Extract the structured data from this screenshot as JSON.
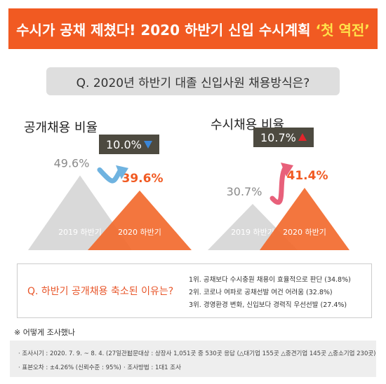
{
  "banner": {
    "title_main": "수시가 공채 제쳤다! 2020 하반기 신입 수시계획",
    "title_highlight": "‘첫 역전’"
  },
  "question": "Q. 2020년 하반기 대졸 신입사원 채용방식은?",
  "colors": {
    "accent": "#f15a22",
    "gray_triangle": "#d9d9d9",
    "orange_triangle": "#f26a2e",
    "badge_bg": "#4d4a40",
    "down_arrow": "#3a86d8",
    "up_arrow": "#e3242b",
    "curve_blue": "#6fb3e0",
    "curve_red": "#e8607a"
  },
  "chart_data": [
    {
      "type": "area",
      "title": "공개채용 비율",
      "categories": [
        "2019 하반기",
        "2020 하반기"
      ],
      "values": [
        49.6,
        39.6
      ],
      "value_labels": [
        "49.6%",
        "39.6%"
      ],
      "change_label": "10.0%",
      "change_direction": "down",
      "change_icon": "triangle-down-icon"
    },
    {
      "type": "area",
      "title": "수시채용 비율",
      "categories": [
        "2019 하반기",
        "2020 하반기"
      ],
      "values": [
        30.7,
        41.4
      ],
      "value_labels": [
        "30.7%",
        "41.4%"
      ],
      "change_label": "10.7%",
      "change_direction": "up",
      "change_icon": "triangle-up-icon"
    }
  ],
  "reasons": {
    "question": "Q. 하반기 공개채용 축소된 이유는?",
    "items": [
      "1위. 공채보다 수시충원 채용이 효율적으로 판단 (34.8%)",
      "2위. 코로나 여파로 공채선발 여건 어려움 (32.8%)",
      "3위. 경영환경 변화, 신입보다 경력직 우선선발 (27.4%)"
    ]
  },
  "method": {
    "title": "※ 어떻게 조사했나",
    "period": "· 조사시기 : 2020. 7. 9. ~ 8. 4. (27일간)",
    "subjects": "· 설문대상 : 상장사 1,051곳 중 530곳 응답 (△대기업 155곳 △중견기업 145곳 △중소기업 230곳)",
    "error": "· 표본오차 : ±4.26% (신뢰수준 : 95%)",
    "approach": "· 조사방법 : 1대1 조사"
  }
}
